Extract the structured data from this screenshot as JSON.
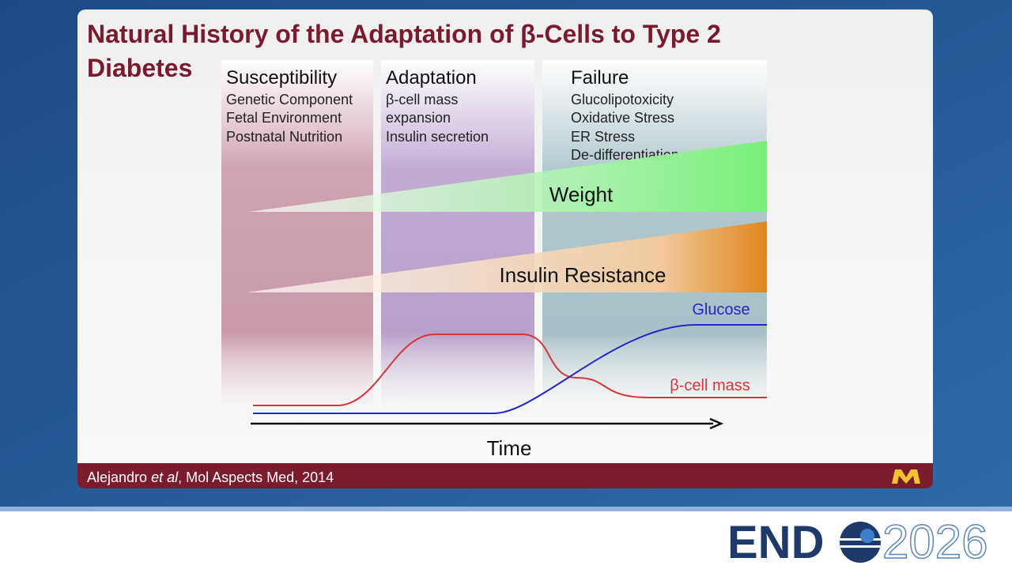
{
  "title_lines": [
    "Natural History of the Adaptation of β-Cells to Type 2",
    "Diabetes"
  ],
  "phases": [
    {
      "header": "Susceptibility",
      "items": [
        "Genetic Component",
        "Fetal Environment",
        "Postnatal Nutrition"
      ]
    },
    {
      "header": "Adaptation",
      "items": [
        "β-cell mass",
        "expansion",
        "Insulin secretion"
      ]
    },
    {
      "header": "Failure",
      "items": [
        "Glucolipotoxicity",
        "Oxidative Stress",
        "ER Stress",
        "De-differentiation"
      ]
    }
  ],
  "wedges": [
    "Weight",
    "Insulin Resistance"
  ],
  "curves": [
    "Glucose",
    "β-cell mass"
  ],
  "axis_label": "Time",
  "citation": [
    "Alejandro",
    "et al",
    ", Mol Aspects Med, 2014"
  ],
  "logo": [
    "END",
    "2026"
  ]
}
